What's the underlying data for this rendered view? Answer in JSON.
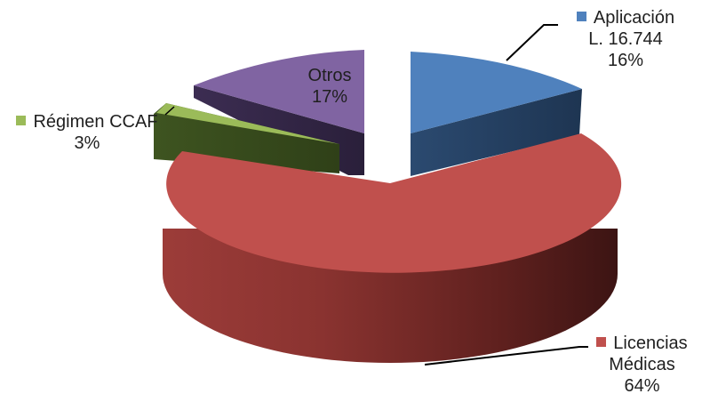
{
  "chart_data": {
    "type": "pie",
    "style": "3d-exploded",
    "slices": [
      {
        "label_lines": [
          "Aplicación",
          "L. 16.744"
        ],
        "percent_label": "16%",
        "value": 16,
        "color": "#4f81bd"
      },
      {
        "label_lines": [
          "Licencias",
          "Médicas"
        ],
        "percent_label": "64%",
        "value": 64,
        "color": "#c0504d"
      },
      {
        "label_lines": [
          "Régimen CCAF"
        ],
        "percent_label": "3%",
        "value": 3,
        "color": "#9bbb59"
      },
      {
        "label_lines": [
          "Otros"
        ],
        "percent_label": "17%",
        "value": 17,
        "color": "#8064a2"
      }
    ]
  }
}
